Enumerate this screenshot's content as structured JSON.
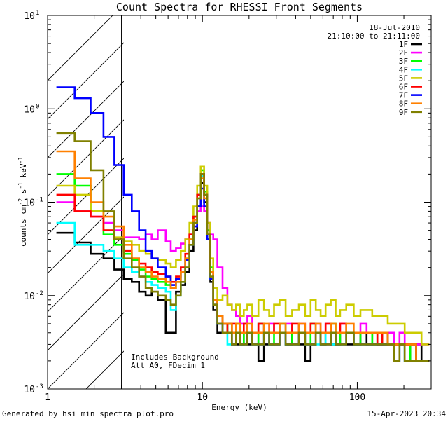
{
  "chart_data": {
    "type": "line",
    "title": "Count Spectra for RHESSI Front Segments",
    "xlabel": "Energy (keV)",
    "ylabel_parts": [
      "counts cm",
      "-2",
      " s",
      "-1",
      " keV",
      "-1"
    ],
    "x_scale": "log",
    "y_scale": "log",
    "xlim": [
      1,
      300
    ],
    "ylim": [
      0.001,
      10
    ],
    "x_ticks": [
      {
        "value": 1,
        "label": "1"
      },
      {
        "value": 10,
        "label": "10"
      },
      {
        "value": 100,
        "label": "100"
      }
    ],
    "y_ticks": [
      {
        "value": 10,
        "base": "10",
        "exp": "1"
      },
      {
        "value": 1,
        "base": "10",
        "exp": "0"
      },
      {
        "value": 0.1,
        "base": "10",
        "exp": "-1"
      },
      {
        "value": 0.01,
        "base": "10",
        "exp": "-2"
      },
      {
        "value": 0.001,
        "base": "10",
        "exp": "-3"
      }
    ],
    "excluded_region_keV": [
      1,
      3
    ],
    "date": "18-Jul-2010",
    "time_range": "21:10:00 to 21:11:00",
    "annotations": [
      "Includes Background",
      "Att A0, FDecim 1"
    ],
    "energy_bins_keV": [
      1.2,
      1.4,
      1.6,
      1.8,
      2.0,
      2.2,
      2.4,
      2.6,
      2.8,
      3.0,
      3.2,
      3.4,
      3.6,
      3.8,
      4.0,
      4.2,
      4.4,
      4.6,
      4.8,
      5.0,
      5.3,
      5.6,
      6.0,
      6.5,
      7.0,
      7.5,
      8.0,
      8.5,
      9.0,
      9.5,
      10.0,
      10.5,
      11.0,
      11.5,
      12.0,
      13,
      14,
      15,
      16,
      17,
      18,
      19,
      20,
      22,
      24,
      26,
      28,
      30,
      33,
      36,
      40,
      44,
      48,
      52,
      56,
      60,
      65,
      70,
      75,
      80,
      90,
      100,
      110,
      120,
      130,
      140,
      150,
      165,
      180,
      195,
      210,
      230,
      250,
      270
    ],
    "series": [
      {
        "name": "1F",
        "color": "#000000",
        "values": [
          0.047,
          0.047,
          0.037,
          0.037,
          0.028,
          0.028,
          0.025,
          0.025,
          0.019,
          0.019,
          0.015,
          0.015,
          0.014,
          0.014,
          0.011,
          0.011,
          0.01,
          0.01,
          0.011,
          0.011,
          0.009,
          0.009,
          0.004,
          0.004,
          0.011,
          0.013,
          0.018,
          0.03,
          0.05,
          0.09,
          0.16,
          0.1,
          0.04,
          0.014,
          0.007,
          0.004,
          0.004,
          0.005,
          0.003,
          0.003,
          0.003,
          0.004,
          0.003,
          0.004,
          0.002,
          0.003,
          0.003,
          0.003,
          0.004,
          0.003,
          0.004,
          0.003,
          0.002,
          0.003,
          0.004,
          0.003,
          0.004,
          0.003,
          0.003,
          0.004,
          0.003,
          0.003,
          0.004,
          0.003,
          0.004,
          0.003,
          0.003,
          0.004,
          0.003,
          0.003,
          0.003,
          0.002,
          0.003,
          0.002
        ]
      },
      {
        "name": "2F",
        "color": "#ff00ff",
        "values": [
          0.1,
          0.1,
          0.08,
          0.08,
          0.07,
          0.07,
          0.06,
          0.06,
          0.05,
          0.05,
          0.042,
          0.042,
          0.042,
          0.042,
          0.04,
          0.04,
          0.045,
          0.045,
          0.04,
          0.04,
          0.05,
          0.05,
          0.038,
          0.03,
          0.032,
          0.036,
          0.04,
          0.045,
          0.06,
          0.08,
          0.09,
          0.08,
          0.06,
          0.045,
          0.04,
          0.02,
          0.012,
          0.008,
          0.007,
          0.006,
          0.005,
          0.005,
          0.006,
          0.004,
          0.005,
          0.004,
          0.005,
          0.004,
          0.004,
          0.005,
          0.004,
          0.005,
          0.004,
          0.004,
          0.005,
          0.004,
          0.005,
          0.004,
          0.004,
          0.005,
          0.004,
          0.004,
          0.005,
          0.004,
          0.004,
          0.004,
          0.004,
          0.004,
          0.003,
          0.004,
          0.003,
          0.003,
          0.003,
          0.003
        ]
      },
      {
        "name": "3F",
        "color": "#00ff00",
        "values": [
          0.2,
          0.2,
          0.15,
          0.15,
          0.08,
          0.08,
          0.045,
          0.045,
          0.035,
          0.035,
          0.028,
          0.028,
          0.024,
          0.024,
          0.019,
          0.019,
          0.016,
          0.016,
          0.015,
          0.015,
          0.014,
          0.014,
          0.013,
          0.012,
          0.014,
          0.018,
          0.025,
          0.04,
          0.07,
          0.12,
          0.22,
          0.13,
          0.05,
          0.02,
          0.009,
          0.006,
          0.005,
          0.004,
          0.004,
          0.005,
          0.003,
          0.004,
          0.004,
          0.003,
          0.005,
          0.004,
          0.003,
          0.004,
          0.005,
          0.003,
          0.004,
          0.004,
          0.003,
          0.005,
          0.004,
          0.003,
          0.004,
          0.005,
          0.003,
          0.004,
          0.004,
          0.003,
          0.004,
          0.004,
          0.003,
          0.003,
          0.004,
          0.003,
          0.003,
          0.003,
          0.002,
          0.003,
          0.002,
          0.002
        ]
      },
      {
        "name": "4F",
        "color": "#00ffff",
        "values": [
          0.06,
          0.06,
          0.035,
          0.035,
          0.035,
          0.035,
          0.03,
          0.03,
          0.025,
          0.025,
          0.02,
          0.02,
          0.018,
          0.018,
          0.016,
          0.016,
          0.014,
          0.014,
          0.013,
          0.013,
          0.012,
          0.012,
          0.011,
          0.007,
          0.01,
          0.014,
          0.02,
          0.035,
          0.06,
          0.11,
          0.19,
          0.11,
          0.04,
          0.015,
          0.008,
          0.005,
          0.004,
          0.003,
          0.003,
          0.004,
          0.003,
          0.003,
          0.004,
          0.003,
          0.003,
          0.004,
          0.003,
          0.003,
          0.004,
          0.003,
          0.003,
          0.004,
          0.003,
          0.003,
          0.003,
          0.003,
          0.004,
          0.003,
          0.003,
          0.003,
          0.004,
          0.003,
          0.003,
          0.003,
          0.003,
          0.003,
          0.003,
          0.003,
          0.002,
          0.003,
          0.002,
          0.002,
          0.002,
          0.002
        ]
      },
      {
        "name": "5F",
        "color": "#cccc00",
        "values": [
          0.15,
          0.15,
          0.12,
          0.12,
          0.08,
          0.08,
          0.05,
          0.05,
          0.042,
          0.042,
          0.038,
          0.038,
          0.035,
          0.035,
          0.03,
          0.03,
          0.028,
          0.028,
          0.025,
          0.025,
          0.024,
          0.024,
          0.022,
          0.02,
          0.024,
          0.03,
          0.04,
          0.06,
          0.09,
          0.15,
          0.24,
          0.15,
          0.06,
          0.025,
          0.012,
          0.009,
          0.01,
          0.008,
          0.007,
          0.008,
          0.006,
          0.007,
          0.008,
          0.006,
          0.009,
          0.007,
          0.006,
          0.008,
          0.009,
          0.006,
          0.007,
          0.008,
          0.006,
          0.009,
          0.007,
          0.006,
          0.008,
          0.009,
          0.006,
          0.007,
          0.008,
          0.006,
          0.007,
          0.007,
          0.006,
          0.006,
          0.006,
          0.005,
          0.005,
          0.005,
          0.004,
          0.004,
          0.004,
          0.003
        ]
      },
      {
        "name": "6F",
        "color": "#ff0000",
        "values": [
          0.12,
          0.12,
          0.08,
          0.08,
          0.07,
          0.07,
          0.05,
          0.05,
          0.04,
          0.04,
          0.03,
          0.03,
          0.025,
          0.025,
          0.022,
          0.022,
          0.02,
          0.02,
          0.018,
          0.018,
          0.017,
          0.017,
          0.016,
          0.014,
          0.016,
          0.02,
          0.028,
          0.045,
          0.07,
          0.12,
          0.2,
          0.12,
          0.045,
          0.018,
          0.009,
          0.006,
          0.005,
          0.004,
          0.005,
          0.004,
          0.004,
          0.005,
          0.004,
          0.004,
          0.005,
          0.004,
          0.004,
          0.005,
          0.004,
          0.004,
          0.005,
          0.004,
          0.004,
          0.005,
          0.004,
          0.004,
          0.005,
          0.004,
          0.004,
          0.005,
          0.004,
          0.004,
          0.004,
          0.004,
          0.004,
          0.003,
          0.004,
          0.003,
          0.003,
          0.003,
          0.003,
          0.003,
          0.002,
          0.002
        ]
      },
      {
        "name": "7F",
        "color": "#0000ff",
        "values": [
          1.7,
          1.7,
          1.3,
          1.3,
          0.9,
          0.9,
          0.5,
          0.5,
          0.25,
          0.25,
          0.12,
          0.12,
          0.08,
          0.08,
          0.05,
          0.05,
          0.03,
          0.03,
          0.025,
          0.025,
          0.02,
          0.02,
          0.016,
          0.013,
          0.015,
          0.018,
          0.024,
          0.035,
          0.055,
          0.09,
          0.14,
          0.09,
          0.04,
          0.015,
          0.008,
          0.005,
          0.004,
          0.004,
          0.003,
          0.004,
          0.003,
          0.003,
          0.004,
          0.003,
          0.003,
          0.004,
          0.003,
          0.003,
          0.004,
          0.003,
          0.003,
          0.004,
          0.003,
          0.003,
          0.004,
          0.003,
          0.003,
          0.004,
          0.003,
          0.003,
          0.004,
          0.003,
          0.003,
          0.003,
          0.003,
          0.003,
          0.003,
          0.003,
          0.002,
          0.003,
          0.002,
          0.002,
          0.002,
          0.002
        ]
      },
      {
        "name": "8F",
        "color": "#ff8000",
        "values": [
          0.35,
          0.35,
          0.18,
          0.18,
          0.1,
          0.1,
          0.07,
          0.07,
          0.055,
          0.055,
          0.035,
          0.035,
          0.025,
          0.025,
          0.02,
          0.02,
          0.018,
          0.018,
          0.016,
          0.016,
          0.015,
          0.015,
          0.014,
          0.012,
          0.014,
          0.018,
          0.025,
          0.04,
          0.065,
          0.11,
          0.18,
          0.11,
          0.045,
          0.018,
          0.009,
          0.006,
          0.005,
          0.005,
          0.004,
          0.005,
          0.004,
          0.004,
          0.005,
          0.004,
          0.004,
          0.005,
          0.004,
          0.004,
          0.005,
          0.004,
          0.004,
          0.005,
          0.004,
          0.004,
          0.005,
          0.004,
          0.004,
          0.005,
          0.004,
          0.004,
          0.005,
          0.004,
          0.004,
          0.004,
          0.004,
          0.004,
          0.004,
          0.003,
          0.003,
          0.003,
          0.003,
          0.003,
          0.002,
          0.002
        ]
      },
      {
        "name": "9F",
        "color": "#808000",
        "values": [
          0.55,
          0.55,
          0.45,
          0.45,
          0.22,
          0.22,
          0.08,
          0.08,
          0.04,
          0.04,
          0.025,
          0.025,
          0.02,
          0.02,
          0.016,
          0.016,
          0.012,
          0.012,
          0.011,
          0.011,
          0.01,
          0.01,
          0.009,
          0.008,
          0.01,
          0.014,
          0.02,
          0.035,
          0.06,
          0.11,
          0.2,
          0.12,
          0.045,
          0.016,
          0.008,
          0.005,
          0.004,
          0.004,
          0.003,
          0.004,
          0.003,
          0.003,
          0.004,
          0.003,
          0.003,
          0.004,
          0.003,
          0.003,
          0.004,
          0.003,
          0.003,
          0.004,
          0.003,
          0.003,
          0.004,
          0.003,
          0.003,
          0.004,
          0.003,
          0.003,
          0.004,
          0.003,
          0.003,
          0.003,
          0.003,
          0.003,
          0.003,
          0.003,
          0.002,
          0.003,
          0.002,
          0.002,
          0.002,
          0.002
        ]
      }
    ]
  },
  "footer": {
    "generated_by": "Generated by hsi_min_spectra_plot.pro",
    "plot_timestamp": "15-Apr-2023 20:34"
  }
}
